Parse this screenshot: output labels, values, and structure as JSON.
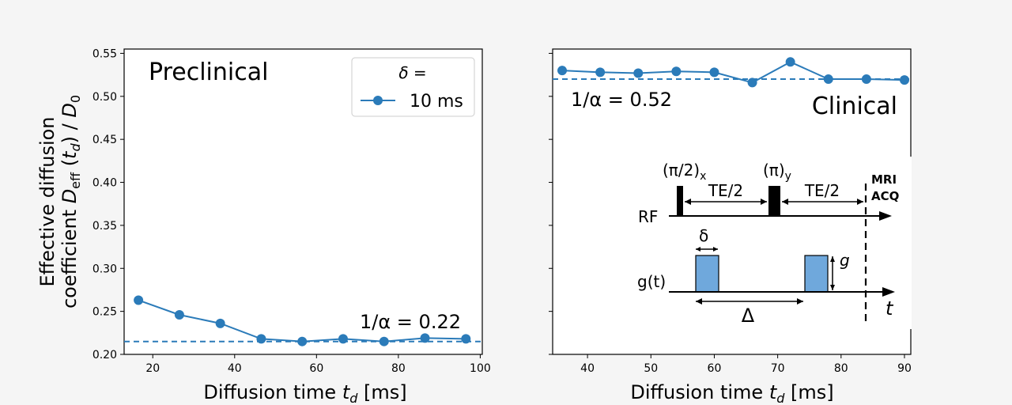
{
  "chart_data": [
    {
      "type": "line",
      "title": "Preclinical",
      "xlabel": "Diffusion time t_d [ms]",
      "xlabel_parts": [
        "Diffusion time ",
        "t",
        "d",
        " [ms]"
      ],
      "ylabel_line1": "Effective diffusion",
      "ylabel_parts": [
        "coefficient ",
        "D",
        "eff",
        " (",
        "t",
        "d",
        ") / ",
        "D",
        "0"
      ],
      "xlim": [
        13,
        100.5
      ],
      "ylim": [
        0.2,
        0.555
      ],
      "xticks": [
        20,
        40,
        60,
        80,
        100
      ],
      "yticks": [
        0.2,
        0.25,
        0.3,
        0.35,
        0.4,
        0.45,
        0.5,
        0.55
      ],
      "ytick_labels": [
        "0.20",
        "0.25",
        "0.30",
        "0.35",
        "0.40",
        "0.45",
        "0.50",
        "0.55"
      ],
      "series": [
        {
          "name": "10 ms",
          "color": "#2b7bb9",
          "x": [
            16.5,
            26.5,
            36.5,
            46.5,
            56.5,
            66.5,
            76.5,
            86.5,
            96.5
          ],
          "y": [
            0.263,
            0.246,
            0.236,
            0.218,
            0.215,
            0.218,
            0.215,
            0.219,
            0.218
          ]
        }
      ],
      "reference_line": {
        "y": 0.215,
        "label": "1/α = 0.22",
        "style": "dashed"
      },
      "legend": {
        "title": "δ =",
        "entries": [
          "10 ms"
        ],
        "position": "top-right"
      }
    },
    {
      "type": "line",
      "title": "Clinical",
      "xlabel": "Diffusion time t_d [ms]",
      "xlabel_parts": [
        "Diffusion time ",
        "t",
        "d",
        " [ms]"
      ],
      "xlim": [
        34.5,
        91
      ],
      "ylim": [
        0.2,
        0.555
      ],
      "xticks": [
        40,
        50,
        60,
        70,
        80,
        90
      ],
      "yticks": [
        0.2,
        0.25,
        0.3,
        0.35,
        0.4,
        0.45,
        0.5,
        0.55
      ],
      "ytick_labels_visible": false,
      "series": [
        {
          "name": "10 ms",
          "color": "#2b7bb9",
          "x": [
            36,
            42,
            48,
            54,
            60,
            66,
            72,
            78,
            84,
            90
          ],
          "y": [
            0.53,
            0.528,
            0.527,
            0.529,
            0.528,
            0.516,
            0.54,
            0.52,
            0.52,
            0.519
          ]
        }
      ],
      "reference_line": {
        "y": 0.52,
        "label": "1/α = 0.52",
        "style": "dashed"
      }
    }
  ],
  "inset": {
    "labels": {
      "pi2_base": "(π/2)",
      "pi2_sub": "x",
      "pi_base": "(π)",
      "pi_sub": "y",
      "te1": "TE/2",
      "te2": "TE/2",
      "mri": "MRI",
      "acq": "ACQ",
      "rf": "RF",
      "delta_small": "δ",
      "g_amp": "g",
      "gt": "g(t)",
      "delta_big": "Δ",
      "t_axis": "t"
    },
    "colors": {
      "gradient_pulse": "#6fa8dc"
    }
  },
  "colors": {
    "background": "#f5f5f5",
    "series": "#2b7bb9"
  }
}
